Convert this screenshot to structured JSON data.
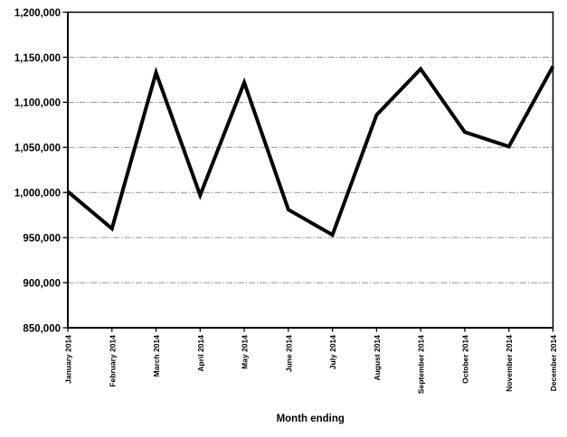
{
  "chart_data": {
    "type": "line",
    "title": "",
    "xlabel": "Month ending",
    "ylabel": "",
    "categories": [
      "January 2014",
      "February 2014",
      "March 2014",
      "April 2014",
      "May 2014",
      "June 2014",
      "July 2014",
      "August 2014",
      "September 2014",
      "October 2014",
      "November 2014",
      "December 2014"
    ],
    "values": [
      1001000,
      960000,
      1133000,
      997000,
      1122000,
      981000,
      953000,
      1086000,
      1137000,
      1067000,
      1051000,
      1140000
    ],
    "ylim": [
      850000,
      1200000
    ],
    "ytick_step": 50000,
    "ytick_labels": [
      "850,000",
      "900,000",
      "950,000",
      "1,000,000",
      "1,050,000",
      "1,100,000",
      "1,150,000",
      "1,200,000"
    ],
    "grid": true,
    "legend": "none",
    "xtick_rotation": -90,
    "colors": {
      "line": "#000000",
      "gridline": "#909090",
      "axis": "#000000",
      "background": "#ffffff",
      "text": "#000000"
    },
    "line_width": 4
  }
}
